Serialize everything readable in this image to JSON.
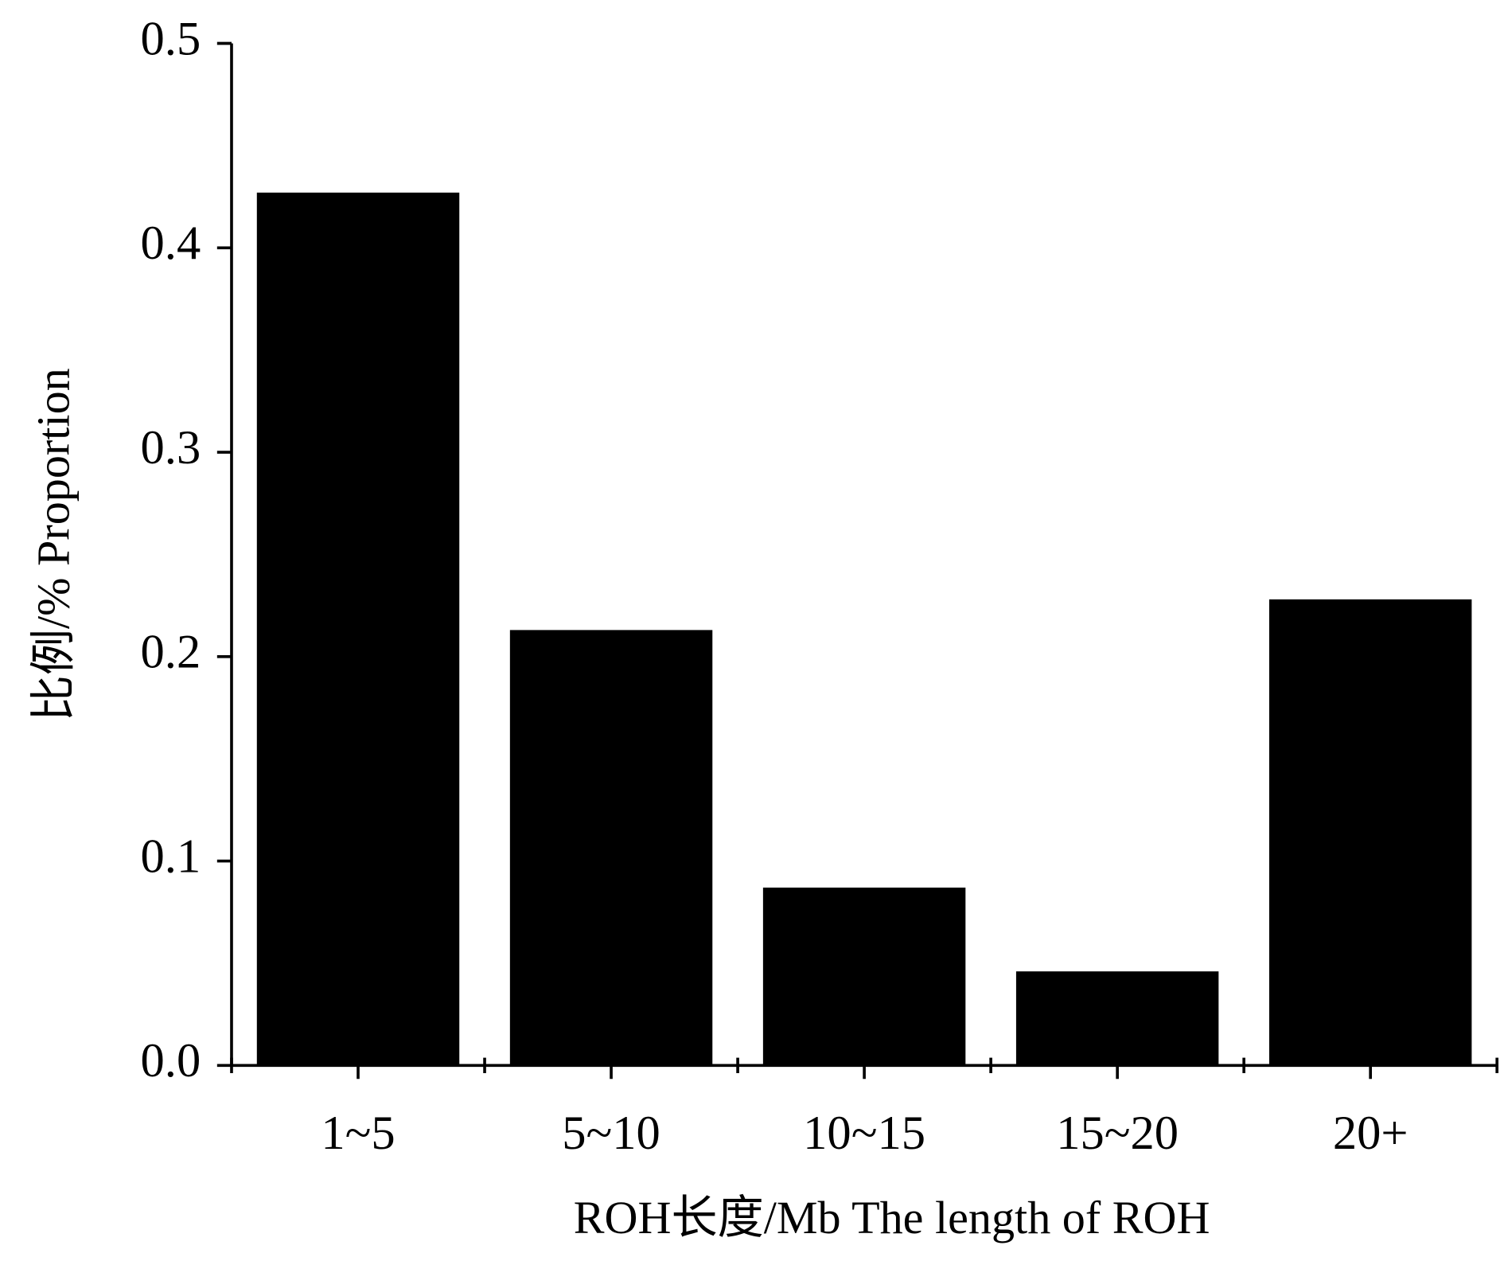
{
  "chart_data": {
    "type": "bar",
    "xlabel": "ROH长度/Mb The length of ROH",
    "ylabel": "比例/% Proportion",
    "categories": [
      "1~5",
      "5~10",
      "10~15",
      "15~20",
      "20+"
    ],
    "values": [
      0.427,
      0.213,
      0.087,
      0.046,
      0.228
    ],
    "color": "#000000",
    "ylim": [
      0,
      0.5
    ],
    "yticks": [
      {
        "value": 0,
        "label": "0.0"
      },
      0.1,
      0.2,
      0.3,
      0.4,
      0.5
    ],
    "grid": false
  }
}
